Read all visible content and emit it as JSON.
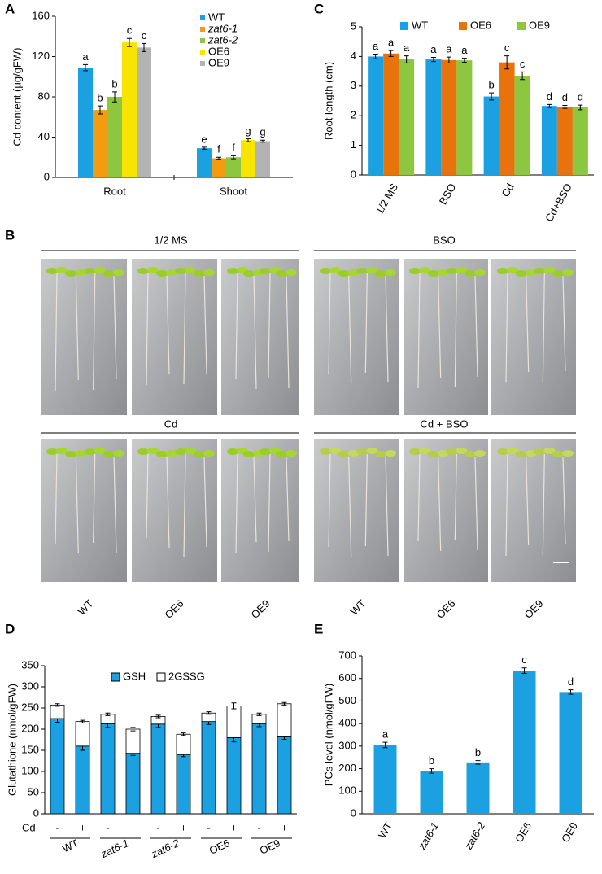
{
  "panel_labels": [
    "A",
    "B",
    "C",
    "D",
    "E"
  ],
  "photo_panel": {
    "conditions": [
      "1/2 MS",
      "BSO",
      "Cd",
      "Cd + BSO"
    ],
    "lines": [
      "WT",
      "OE6",
      "OE9",
      "WT",
      "OE6",
      "OE9"
    ]
  },
  "chart_data": [
    {
      "type": "bar",
      "y_label": "Cd content (μg/gFW)",
      "categories": [
        "Root",
        "Shoot"
      ],
      "ylim": [
        0,
        160
      ],
      "yticks": [
        0,
        40,
        80,
        120,
        160
      ],
      "series": [
        {
          "name": "WT",
          "color": "#1ba1e2",
          "values": [
            109,
            29
          ],
          "errors": [
            3,
            1
          ],
          "significance": [
            "a",
            "e"
          ]
        },
        {
          "name": "zat6-1",
          "color": "#f39c12",
          "values": [
            67,
            19
          ],
          "errors": [
            4,
            1
          ],
          "significance": [
            "b",
            "f"
          ]
        },
        {
          "name": "zat6-2",
          "color": "#8dc63f",
          "values": [
            80,
            20
          ],
          "errors": [
            5,
            1.5
          ],
          "significance": [
            "b",
            "f"
          ]
        },
        {
          "name": "OE6",
          "color": "#f7e400",
          "values": [
            134,
            37
          ],
          "errors": [
            4,
            1.5
          ],
          "significance": [
            "c",
            "g"
          ]
        },
        {
          "name": "OE9",
          "color": "#b3b3b3",
          "values": [
            129,
            36
          ],
          "errors": [
            4,
            1
          ],
          "significance": [
            "c",
            "g"
          ]
        }
      ]
    },
    {
      "type": "bar",
      "y_label": "Root length (cm)",
      "categories": [
        "1/2 MS",
        "BSO",
        "Cd",
        "Cd+BSO"
      ],
      "ylim": [
        0,
        5
      ],
      "yticks": [
        0,
        1,
        2,
        3,
        4,
        5
      ],
      "series": [
        {
          "name": "WT",
          "color": "#1ba1e2",
          "values": [
            4.0,
            3.9,
            2.65,
            2.33
          ],
          "errors": [
            0.08,
            0.07,
            0.12,
            0.05
          ],
          "significance": [
            "a",
            "a",
            "b",
            "d"
          ]
        },
        {
          "name": "OE6",
          "color": "#e8730c",
          "values": [
            4.1,
            3.88,
            3.8,
            2.3
          ],
          "errors": [
            0.1,
            0.1,
            0.22,
            0.05
          ],
          "significance": [
            "a",
            "a",
            "c",
            "d"
          ]
        },
        {
          "name": "OE9",
          "color": "#8dc63f",
          "values": [
            3.9,
            3.87,
            3.35,
            2.28
          ],
          "errors": [
            0.12,
            0.07,
            0.13,
            0.08
          ],
          "significance": [
            "a",
            "a",
            "c",
            "d"
          ]
        }
      ]
    },
    {
      "type": "stacked_bar",
      "y_label": "Glutathione (nmol/gFW)",
      "x_label": "Cd",
      "categories": [
        "-",
        "+",
        "-",
        "+",
        "-",
        "+",
        "-",
        "+",
        "-",
        "+"
      ],
      "groups": [
        "WT",
        "zat6-1",
        "zat6-2",
        "OE6",
        "OE9"
      ],
      "ylim": [
        0,
        350
      ],
      "yticks": [
        0,
        50,
        100,
        150,
        200,
        250,
        300,
        350
      ],
      "series": [
        {
          "name": "GSH",
          "color": "#1ba1e2",
          "values": [
            225,
            160,
            213,
            143,
            212,
            140,
            218,
            180,
            213,
            182
          ],
          "errors": [
            9,
            10,
            9,
            5,
            8,
            5,
            7,
            10,
            7,
            6
          ]
        },
        {
          "name": "2GSSG",
          "color": "#ffffff",
          "values": [
            32,
            58,
            22,
            57,
            18,
            48,
            20,
            75,
            22,
            78
          ],
          "errors": [
            3,
            3,
            3,
            4,
            3,
            3,
            3,
            7,
            3,
            3
          ]
        }
      ]
    },
    {
      "type": "bar",
      "y_label": "PCs level (nmol/gFW)",
      "categories": [
        "WT",
        "zat6-1",
        "zat6-2",
        "OE6",
        "OE9"
      ],
      "ylim": [
        0,
        700
      ],
      "yticks": [
        0,
        100,
        200,
        300,
        400,
        500,
        600,
        700
      ],
      "color": "#1ba1e2",
      "values": [
        305,
        190,
        228,
        635,
        540
      ],
      "errors": [
        12,
        10,
        8,
        12,
        10
      ],
      "significance": [
        "a",
        "b",
        "b",
        "c",
        "d"
      ]
    }
  ]
}
